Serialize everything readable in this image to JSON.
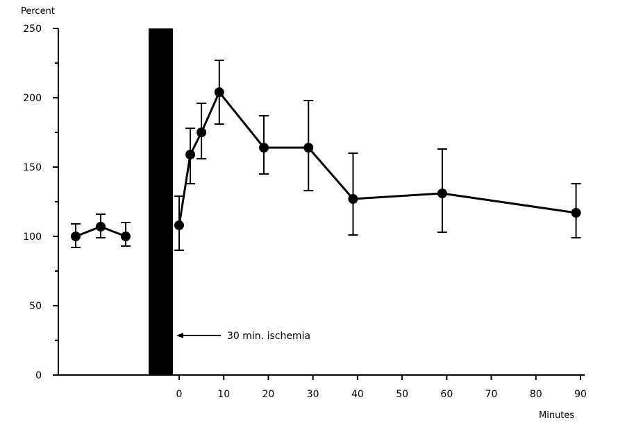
{
  "chart_data": {
    "type": "line",
    "ylabel": "Percent",
    "xlabel": "Minutes",
    "ylim": [
      0,
      250
    ],
    "yticks": [
      "0",
      "50",
      "100",
      "150",
      "200",
      "250"
    ],
    "xlim": [
      0,
      90
    ],
    "xticks": [
      "0",
      "10",
      "20",
      "30",
      "40",
      "50",
      "60",
      "70",
      "80",
      "90"
    ],
    "baseline": {
      "values": [
        100,
        107,
        100
      ],
      "err_low": [
        92,
        99,
        93
      ],
      "err_high": [
        109,
        116,
        110
      ]
    },
    "series": [
      {
        "x": [
          0,
          2.5,
          5,
          9,
          19,
          29,
          39,
          59,
          89
        ],
        "y": [
          108,
          159,
          175,
          204,
          164,
          164,
          127,
          131,
          117
        ],
        "err_low": [
          90,
          138,
          156,
          181,
          145,
          133,
          101,
          103,
          99
        ],
        "err_high": [
          129,
          178,
          196,
          227,
          187,
          198,
          160,
          163,
          138
        ]
      }
    ],
    "ischemia_bar": {
      "label": "30 min. ischemia"
    },
    "grid": false,
    "legend": "none"
  },
  "colors": {
    "ink": "#000000",
    "background": "#ffffff"
  }
}
